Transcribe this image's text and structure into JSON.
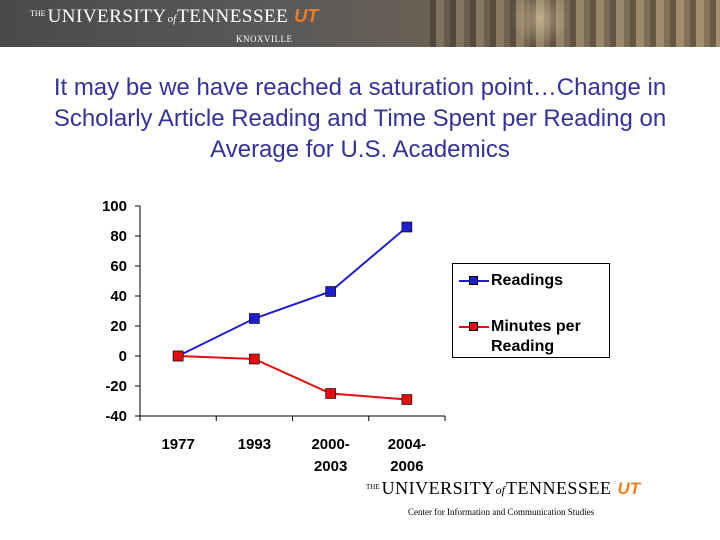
{
  "header": {
    "wordmark_the": "THE",
    "wordmark_university": "UNIVERSITY",
    "wordmark_of": "of",
    "wordmark_tennessee": "TENNESSEE",
    "logo_text": "UT",
    "subtitle": "KNOXVILLE"
  },
  "slide": {
    "title": "It may be we have reached a saturation point…Change in Scholarly Article Reading and Time Spent per Reading on Average for U.S. Academics"
  },
  "chart_data": {
    "type": "line",
    "title": "",
    "xlabel": "",
    "ylabel": "",
    "categories": [
      "1977",
      "1993",
      "2000-2003",
      "2004-2006"
    ],
    "category_lines": [
      [
        "1977"
      ],
      [
        "1993"
      ],
      [
        "2000-",
        "2003"
      ],
      [
        "2004-",
        "2006"
      ]
    ],
    "ylim": [
      -40,
      100
    ],
    "yticks": [
      100,
      80,
      60,
      40,
      20,
      0,
      -20,
      -40
    ],
    "grid": false,
    "legend_position": "right",
    "series": [
      {
        "name": "Readings",
        "values": [
          0,
          25,
          43,
          86
        ],
        "color": "#1f1fd0"
      },
      {
        "name": "Minutes per Reading",
        "values": [
          0,
          -2,
          -25,
          -29
        ],
        "color": "#e01010"
      }
    ]
  },
  "footer": {
    "wordmark_the": "THE",
    "wordmark_university": "UNIVERSITY",
    "wordmark_of": "of",
    "wordmark_tennessee": "TENNESSEE",
    "logo_text": "UT",
    "caption": "Center for Information and Communication Studies"
  }
}
